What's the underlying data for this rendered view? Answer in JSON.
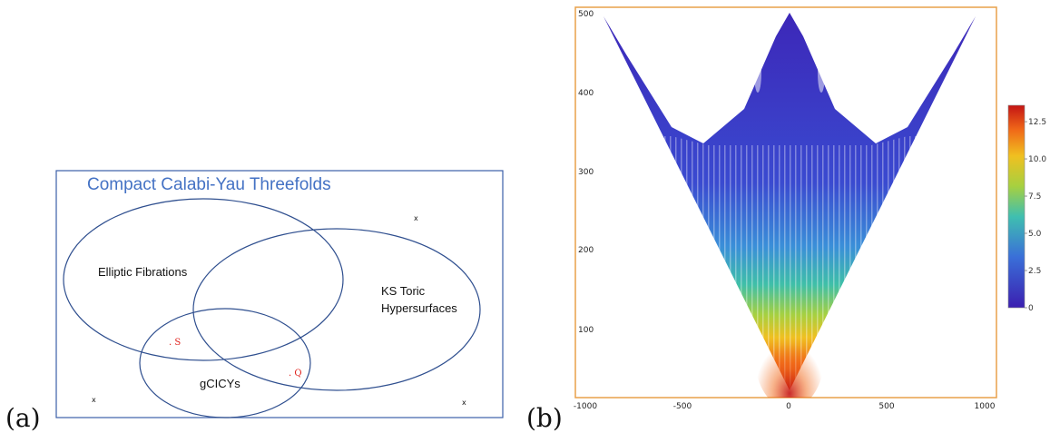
{
  "panel_a": {
    "label": "(a)",
    "title": "Compact Calabi-Yau Threefolds",
    "sets": {
      "elliptic": "Elliptic Fibrations",
      "ks_line1": "KS Toric",
      "ks_line2": "Hypersurfaces",
      "gcicy": "gCICYs"
    },
    "points": {
      "s": ". S",
      "q": ". Q"
    },
    "markers": [
      "x",
      "x",
      "x"
    ]
  },
  "panel_b": {
    "label": "(b)",
    "x_ticks": [
      "-1000",
      "-500",
      "0",
      "500",
      "1000"
    ],
    "y_ticks": [
      "100",
      "200",
      "300",
      "400",
      "500"
    ],
    "colorbar_ticks": [
      "0",
      "2.5",
      "5.0",
      "7.5",
      "10.0",
      "12.5"
    ],
    "colorbar_range": [
      0,
      13.6
    ],
    "colors": {
      "frame": "#e8a04a",
      "low": "#3b1fb0",
      "high": "#c41414"
    }
  }
}
